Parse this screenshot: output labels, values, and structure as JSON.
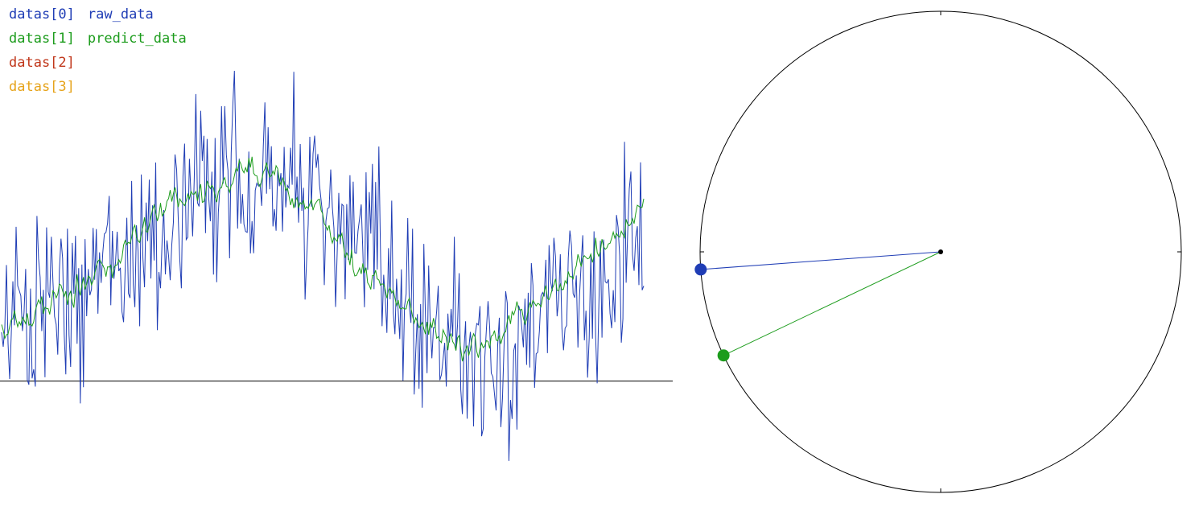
{
  "legend": [
    {
      "key": "datas[0]",
      "label": "raw_data",
      "color": "#1f3db5"
    },
    {
      "key": "datas[1]",
      "label": "predict_data",
      "color": "#1c9c1c"
    },
    {
      "key": "datas[2]",
      "label": "",
      "color": "#c0361a"
    },
    {
      "key": "datas[3]",
      "label": "",
      "color": "#e6a31a"
    }
  ],
  "chart_data": [
    {
      "type": "line",
      "xlim": [
        0,
        800
      ],
      "ylim": [
        -125,
        425
      ],
      "baseline": 0,
      "series": [
        {
          "name": "raw_data",
          "color": "#1f3db5",
          "amplitude": 55,
          "trend": [
            [
              0,
              60
            ],
            [
              100,
              100
            ],
            [
              200,
              175
            ],
            [
              300,
              245
            ],
            [
              350,
              230
            ],
            [
              450,
              150
            ],
            [
              550,
              55
            ],
            [
              600,
              35
            ],
            [
              700,
              75
            ],
            [
              800,
              160
            ]
          ]
        },
        {
          "name": "predict_data",
          "color": "#1c9c1c",
          "amplitude": 18,
          "trend": [
            [
              0,
              60
            ],
            [
              100,
              105
            ],
            [
              200,
              190
            ],
            [
              300,
              240
            ],
            [
              350,
              225
            ],
            [
              450,
              130
            ],
            [
              550,
              45
            ],
            [
              600,
              40
            ],
            [
              700,
              110
            ],
            [
              800,
              200
            ]
          ]
        }
      ]
    },
    {
      "type": "scatter",
      "shape": "circle",
      "center": [
        0,
        0
      ],
      "radius": 1,
      "points": [
        {
          "name": "raw_data",
          "color": "#1f3db5",
          "angle_deg": 184.2
        },
        {
          "name": "predict_data",
          "color": "#1c9c1c",
          "angle_deg": 205.5
        }
      ]
    }
  ]
}
